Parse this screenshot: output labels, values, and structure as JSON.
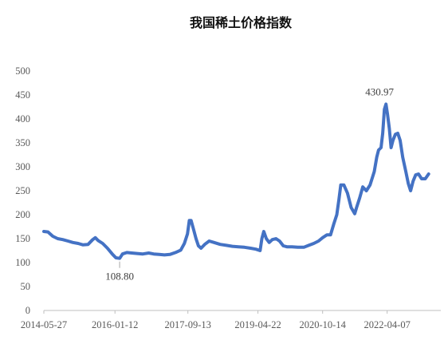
{
  "chart_data": {
    "type": "line",
    "title": "我国稀土价格指数",
    "xlabel": "",
    "ylabel": "",
    "ylim": [
      0,
      500
    ],
    "yticks": [
      0,
      50,
      100,
      150,
      200,
      250,
      300,
      350,
      400,
      450,
      500
    ],
    "xlim": [
      "2014-05-27",
      "2023-06-30"
    ],
    "xticks": [
      "2014-05-27",
      "2016-01-12",
      "2017-09-13",
      "2019-04-22",
      "2020-10-14",
      "2022-04-07"
    ],
    "grid": false,
    "legend": "none",
    "line_color": "#4472C4",
    "series": [
      {
        "name": "",
        "points": [
          [
            "2014-05-27",
            165
          ],
          [
            "2014-07-01",
            164
          ],
          [
            "2014-08-10",
            155
          ],
          [
            "2014-09-20",
            150
          ],
          [
            "2014-11-01",
            148
          ],
          [
            "2014-12-15",
            145
          ],
          [
            "2015-01-25",
            142
          ],
          [
            "2015-03-10",
            140
          ],
          [
            "2015-04-20",
            137
          ],
          [
            "2015-06-01",
            138
          ],
          [
            "2015-07-10",
            148
          ],
          [
            "2015-08-01",
            152
          ],
          [
            "2015-08-25",
            146
          ],
          [
            "2015-10-01",
            140
          ],
          [
            "2015-11-10",
            130
          ],
          [
            "2015-12-20",
            118
          ],
          [
            "2016-01-20",
            110
          ],
          [
            "2016-02-20",
            108.8
          ],
          [
            "2016-03-15",
            118
          ],
          [
            "2016-04-20",
            121
          ],
          [
            "2016-06-01",
            120
          ],
          [
            "2016-07-15",
            119
          ],
          [
            "2016-09-01",
            118
          ],
          [
            "2016-10-20",
            120
          ],
          [
            "2016-12-01",
            118
          ],
          [
            "2017-01-15",
            117
          ],
          [
            "2017-03-01",
            116
          ],
          [
            "2017-04-15",
            117
          ],
          [
            "2017-06-01",
            121
          ],
          [
            "2017-07-15",
            126
          ],
          [
            "2017-08-15",
            140
          ],
          [
            "2017-09-10",
            160
          ],
          [
            "2017-09-25",
            188
          ],
          [
            "2017-10-10",
            188
          ],
          [
            "2017-10-30",
            170
          ],
          [
            "2017-11-20",
            150
          ],
          [
            "2017-12-10",
            135
          ],
          [
            "2018-01-01",
            130
          ],
          [
            "2018-02-01",
            138
          ],
          [
            "2018-03-10",
            145
          ],
          [
            "2018-04-20",
            142
          ],
          [
            "2018-06-10",
            138
          ],
          [
            "2018-08-01",
            136
          ],
          [
            "2018-09-20",
            134
          ],
          [
            "2018-11-10",
            133
          ],
          [
            "2018-12-30",
            132
          ],
          [
            "2019-02-20",
            130
          ],
          [
            "2019-04-05",
            128
          ],
          [
            "2019-05-10",
            125
          ],
          [
            "2019-05-25",
            150
          ],
          [
            "2019-06-10",
            165
          ],
          [
            "2019-07-01",
            150
          ],
          [
            "2019-07-25",
            142
          ],
          [
            "2019-08-20",
            148
          ],
          [
            "2019-09-20",
            150
          ],
          [
            "2019-10-20",
            145
          ],
          [
            "2019-11-20",
            135
          ],
          [
            "2019-12-20",
            133
          ],
          [
            "2020-02-01",
            133
          ],
          [
            "2020-03-20",
            132
          ],
          [
            "2020-05-10",
            132
          ],
          [
            "2020-06-20",
            136
          ],
          [
            "2020-08-01",
            140
          ],
          [
            "2020-09-10",
            145
          ],
          [
            "2020-10-14",
            152
          ],
          [
            "2020-11-20",
            158
          ],
          [
            "2020-12-20",
            158
          ],
          [
            "2021-01-15",
            180
          ],
          [
            "2021-02-10",
            200
          ],
          [
            "2021-02-28",
            232
          ],
          [
            "2021-03-15",
            262
          ],
          [
            "2021-04-10",
            262
          ],
          [
            "2021-05-10",
            245
          ],
          [
            "2021-06-10",
            215
          ],
          [
            "2021-07-10",
            202
          ],
          [
            "2021-07-25",
            215
          ],
          [
            "2021-08-20",
            235
          ],
          [
            "2021-09-15",
            258
          ],
          [
            "2021-10-15",
            250
          ],
          [
            "2021-11-15",
            262
          ],
          [
            "2021-12-20",
            290
          ],
          [
            "2022-01-10",
            320
          ],
          [
            "2022-01-25",
            335
          ],
          [
            "2022-02-15",
            340
          ],
          [
            "2022-03-01",
            370
          ],
          [
            "2022-03-15",
            420
          ],
          [
            "2022-03-28",
            430.97
          ],
          [
            "2022-04-10",
            410
          ],
          [
            "2022-04-25",
            380
          ],
          [
            "2022-05-10",
            340
          ],
          [
            "2022-05-25",
            355
          ],
          [
            "2022-06-15",
            368
          ],
          [
            "2022-07-05",
            370
          ],
          [
            "2022-07-25",
            355
          ],
          [
            "2022-08-15",
            320
          ],
          [
            "2022-09-10",
            290
          ],
          [
            "2022-10-01",
            265
          ],
          [
            "2022-10-20",
            250
          ],
          [
            "2022-11-10",
            270
          ],
          [
            "2022-12-01",
            283
          ],
          [
            "2022-12-25",
            285
          ],
          [
            "2023-01-20",
            275
          ],
          [
            "2023-02-20",
            275
          ],
          [
            "2023-03-20",
            285
          ]
        ]
      }
    ],
    "annotations": [
      {
        "text": "430.97",
        "x": "2022-03-28",
        "y": 430.97
      },
      {
        "text": "108.80",
        "x": "2016-02-20",
        "y": 108.8
      }
    ]
  }
}
